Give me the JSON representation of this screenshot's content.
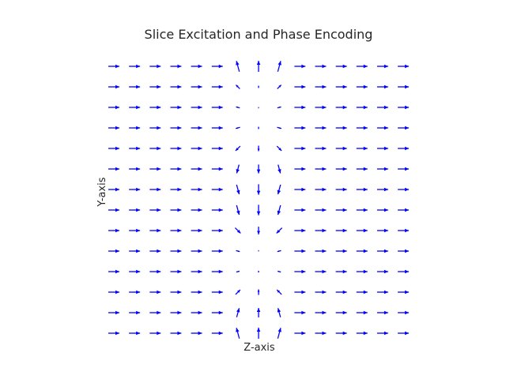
{
  "chart_data": {
    "type": "quiver",
    "title": "Slice Excitation and Phase Encoding",
    "xlabel": "Z-axis",
    "ylabel": "Y-axis",
    "grid": false,
    "arrow_color": "#0000ff",
    "columns": 15,
    "rows": 14,
    "excited_columns": [
      6,
      7,
      8
    ],
    "phase_cycle_rows": 10,
    "arrow_angles_deg": [
      [
        0,
        0,
        0,
        0,
        0,
        0,
        105,
        90,
        75,
        0,
        0,
        0,
        0,
        0,
        0
      ],
      [
        0,
        0,
        0,
        0,
        0,
        0,
        135,
        90,
        45,
        0,
        0,
        0,
        0,
        0,
        0
      ],
      [
        0,
        0,
        0,
        0,
        0,
        0,
        165,
        90,
        15,
        0,
        0,
        0,
        0,
        0,
        0
      ],
      [
        0,
        0,
        0,
        0,
        0,
        0,
        195,
        270,
        345,
        0,
        0,
        0,
        0,
        0,
        0
      ],
      [
        0,
        0,
        0,
        0,
        0,
        0,
        225,
        270,
        315,
        0,
        0,
        0,
        0,
        0,
        0
      ],
      [
        0,
        0,
        0,
        0,
        0,
        0,
        255,
        270,
        285,
        0,
        0,
        0,
        0,
        0,
        0
      ],
      [
        0,
        0,
        0,
        0,
        0,
        0,
        285,
        270,
        255,
        0,
        0,
        0,
        0,
        0,
        0
      ],
      [
        0,
        0,
        0,
        0,
        0,
        0,
        285,
        270,
        255,
        0,
        0,
        0,
        0,
        0,
        0
      ],
      [
        0,
        0,
        0,
        0,
        0,
        0,
        315,
        270,
        225,
        0,
        0,
        0,
        0,
        0,
        0
      ],
      [
        0,
        0,
        0,
        0,
        0,
        0,
        345,
        270,
        195,
        0,
        0,
        0,
        0,
        0,
        0
      ],
      [
        0,
        0,
        0,
        0,
        0,
        0,
        15,
        90,
        165,
        0,
        0,
        0,
        0,
        0,
        0
      ],
      [
        0,
        0,
        0,
        0,
        0,
        0,
        45,
        90,
        135,
        0,
        0,
        0,
        0,
        0,
        0
      ],
      [
        0,
        0,
        0,
        0,
        0,
        0,
        75,
        90,
        105,
        0,
        0,
        0,
        0,
        0,
        0
      ],
      [
        0,
        0,
        0,
        0,
        0,
        0,
        105,
        90,
        75,
        0,
        0,
        0,
        0,
        0,
        0
      ]
    ],
    "arrow_magnitudes": [
      [
        1,
        1,
        1,
        1,
        1,
        1,
        1.0,
        1.0,
        1.0,
        1,
        1,
        1,
        1,
        1,
        1
      ],
      [
        1,
        1,
        1,
        1,
        1,
        1,
        0.5,
        0.2,
        0.5,
        1,
        1,
        1,
        1,
        1,
        1
      ],
      [
        1,
        1,
        1,
        1,
        1,
        1,
        0.35,
        0.05,
        0.35,
        1,
        1,
        1,
        1,
        1,
        1
      ],
      [
        1,
        1,
        1,
        1,
        1,
        1,
        0.4,
        0.2,
        0.4,
        1,
        1,
        1,
        1,
        1,
        1
      ],
      [
        1,
        1,
        1,
        1,
        1,
        1,
        0.6,
        0.5,
        0.6,
        1,
        1,
        1,
        1,
        1,
        1
      ],
      [
        1,
        1,
        1,
        1,
        1,
        1,
        0.8,
        0.8,
        0.8,
        1,
        1,
        1,
        1,
        1,
        1
      ],
      [
        1,
        1,
        1,
        1,
        1,
        1,
        0.9,
        0.95,
        0.9,
        1,
        1,
        1,
        1,
        1,
        1
      ],
      [
        1,
        1,
        1,
        1,
        1,
        1,
        0.9,
        0.95,
        0.9,
        1,
        1,
        1,
        1,
        1,
        1
      ],
      [
        1,
        1,
        1,
        1,
        1,
        1,
        0.7,
        0.7,
        0.7,
        1,
        1,
        1,
        1,
        1,
        1
      ],
      [
        1,
        1,
        1,
        1,
        1,
        1,
        0.35,
        0.05,
        0.35,
        1,
        1,
        1,
        1,
        1,
        1
      ],
      [
        1,
        1,
        1,
        1,
        1,
        1,
        0.3,
        0.15,
        0.3,
        1,
        1,
        1,
        1,
        1,
        1
      ],
      [
        1,
        1,
        1,
        1,
        1,
        1,
        0.6,
        0.5,
        0.6,
        1,
        1,
        1,
        1,
        1,
        1
      ],
      [
        1,
        1,
        1,
        1,
        1,
        1,
        0.85,
        0.85,
        0.85,
        1,
        1,
        1,
        1,
        1,
        1
      ],
      [
        1,
        1,
        1,
        1,
        1,
        1,
        1.0,
        1.0,
        1.0,
        1,
        1,
        1,
        1,
        1,
        1
      ]
    ]
  }
}
